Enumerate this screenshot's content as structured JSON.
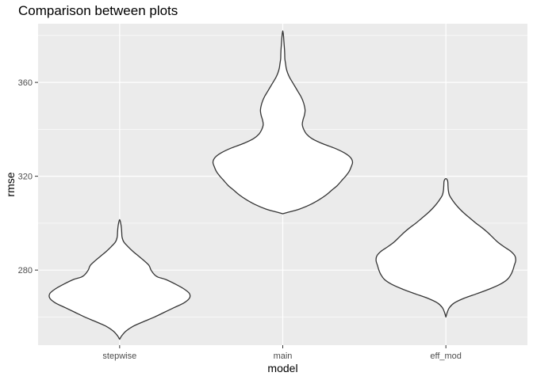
{
  "chart_data": {
    "type": "violin",
    "title": "Comparison between plots",
    "xlabel": "model",
    "ylabel": "rmse",
    "categories": [
      "stepwise",
      "main",
      "eff_mod"
    ],
    "ylim": [
      248,
      385
    ],
    "yticks": [
      280,
      320,
      360
    ],
    "grid": true,
    "colors": {
      "panel": "#ebebeb",
      "grid_major": "#ffffff",
      "violin_fill": "#ffffff",
      "violin_outline": "#333333"
    },
    "series": [
      {
        "category": "stepwise",
        "min": 250.5,
        "max": 301.5,
        "profile": [
          [
            250.5,
            0.0
          ],
          [
            252,
            0.03
          ],
          [
            254,
            0.09
          ],
          [
            256,
            0.19
          ],
          [
            258,
            0.34
          ],
          [
            260,
            0.5
          ],
          [
            262,
            0.64
          ],
          [
            264,
            0.78
          ],
          [
            266,
            0.92
          ],
          [
            268,
            1.0
          ],
          [
            270,
            1.0
          ],
          [
            272,
            0.92
          ],
          [
            274,
            0.8
          ],
          [
            276,
            0.66
          ],
          [
            277,
            0.55
          ],
          [
            278,
            0.5
          ],
          [
            280,
            0.45
          ],
          [
            282,
            0.42
          ],
          [
            284,
            0.35
          ],
          [
            286,
            0.27
          ],
          [
            288,
            0.19
          ],
          [
            290,
            0.12
          ],
          [
            292,
            0.06
          ],
          [
            294,
            0.035
          ],
          [
            296,
            0.03
          ],
          [
            298,
            0.025
          ],
          [
            300,
            0.015
          ],
          [
            301.5,
            0.0
          ]
        ]
      },
      {
        "category": "main",
        "min": 304,
        "max": 382,
        "profile": [
          [
            304,
            0.0
          ],
          [
            305,
            0.12
          ],
          [
            306,
            0.24
          ],
          [
            308,
            0.4
          ],
          [
            310,
            0.52
          ],
          [
            312,
            0.62
          ],
          [
            314,
            0.7
          ],
          [
            316,
            0.78
          ],
          [
            318,
            0.84
          ],
          [
            320,
            0.9
          ],
          [
            322,
            0.95
          ],
          [
            324,
            0.98
          ],
          [
            326,
            1.0
          ],
          [
            328,
            0.97
          ],
          [
            330,
            0.88
          ],
          [
            332,
            0.74
          ],
          [
            334,
            0.56
          ],
          [
            336,
            0.42
          ],
          [
            338,
            0.34
          ],
          [
            340,
            0.3
          ],
          [
            342,
            0.28
          ],
          [
            344,
            0.29
          ],
          [
            346,
            0.31
          ],
          [
            348,
            0.32
          ],
          [
            350,
            0.31
          ],
          [
            352,
            0.29
          ],
          [
            354,
            0.26
          ],
          [
            356,
            0.22
          ],
          [
            358,
            0.18
          ],
          [
            360,
            0.14
          ],
          [
            362,
            0.1
          ],
          [
            364,
            0.07
          ],
          [
            366,
            0.05
          ],
          [
            368,
            0.04
          ],
          [
            370,
            0.03
          ],
          [
            372,
            0.028
          ],
          [
            374,
            0.025
          ],
          [
            376,
            0.02
          ],
          [
            378,
            0.015
          ],
          [
            380,
            0.01
          ],
          [
            382,
            0.0
          ]
        ]
      },
      {
        "category": "eff_mod",
        "min": 260,
        "max": 319,
        "profile": [
          [
            260,
            0.0
          ],
          [
            262,
            0.02
          ],
          [
            264,
            0.05
          ],
          [
            266,
            0.12
          ],
          [
            268,
            0.26
          ],
          [
            270,
            0.45
          ],
          [
            272,
            0.63
          ],
          [
            274,
            0.78
          ],
          [
            276,
            0.88
          ],
          [
            278,
            0.93
          ],
          [
            280,
            0.96
          ],
          [
            282,
            0.98
          ],
          [
            284,
            1.0
          ],
          [
            286,
            0.99
          ],
          [
            288,
            0.93
          ],
          [
            290,
            0.83
          ],
          [
            292,
            0.74
          ],
          [
            294,
            0.67
          ],
          [
            296,
            0.6
          ],
          [
            298,
            0.52
          ],
          [
            300,
            0.43
          ],
          [
            302,
            0.35
          ],
          [
            304,
            0.27
          ],
          [
            306,
            0.2
          ],
          [
            308,
            0.14
          ],
          [
            310,
            0.09
          ],
          [
            312,
            0.05
          ],
          [
            314,
            0.035
          ],
          [
            316,
            0.03
          ],
          [
            318,
            0.025
          ],
          [
            319,
            0.0
          ]
        ]
      }
    ]
  }
}
